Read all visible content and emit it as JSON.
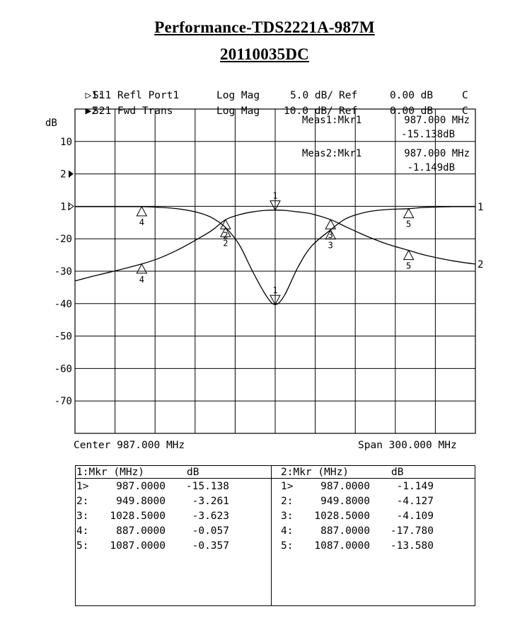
{
  "header": {
    "title": "Performance-TDS2221A-987M",
    "subtitle": "20110035DC"
  },
  "channels": [
    {
      "prefix": "▷1:",
      "label": "S11 Refl Port1",
      "format": "Log Mag",
      "scale": "5.0 dB/",
      "ref_label": "Ref",
      "ref": "0.00 dB",
      "flag": "C"
    },
    {
      "prefix": "▶2:",
      "label": "S21 Fwd Trans",
      "format": "Log Mag",
      "scale": "10.0 dB/",
      "ref_label": "Ref",
      "ref": "0.00 dB",
      "flag": "C"
    }
  ],
  "measurements": [
    {
      "label": "Meas1:Mkr1",
      "freq": "987.000 MHz",
      "value": "-15.138dB"
    },
    {
      "label": "Meas2:Mkr1",
      "freq": "987.000 MHz",
      "value": "-1.149dB"
    }
  ],
  "footer": {
    "center": "Center 987.000 MHz",
    "span": "Span 300.000 MHz"
  },
  "chart_data": {
    "type": "line",
    "ylabel": "dB",
    "y_ticks": [
      "10",
      "2:",
      "1:",
      "-20",
      "-30",
      "-40",
      "-50",
      "-60",
      "-70"
    ],
    "x_center_mhz": 987.0,
    "x_span_mhz": 300.0,
    "xlim": [
      837,
      1137
    ],
    "grid": true,
    "series": [
      {
        "name": "1",
        "scale_db_per_div": 5.0,
        "ref_db": 0.0,
        "x": [
          837,
          850,
          870,
          887,
          900,
          915,
          930,
          940,
          949.8,
          960,
          970,
          980,
          987,
          994,
          1004,
          1014,
          1028.5,
          1040,
          1055,
          1070,
          1087,
          1100,
          1120,
          1137
        ],
        "y": [
          -0.05,
          -0.05,
          -0.05,
          -0.057,
          -0.15,
          -0.4,
          -1.0,
          -1.8,
          -3.261,
          -5.9,
          -10.0,
          -13.7,
          -15.138,
          -13.7,
          -9.4,
          -6.2,
          -3.623,
          -1.9,
          -0.9,
          -0.5,
          -0.357,
          -0.15,
          -0.05,
          -0.05
        ]
      },
      {
        "name": "2",
        "scale_db_per_div": 10.0,
        "ref_db": 0.0,
        "x": [
          837,
          850,
          870,
          887,
          900,
          915,
          930,
          940,
          949.8,
          960,
          970,
          980,
          987,
          994,
          1004,
          1014,
          1028.5,
          1040,
          1055,
          1070,
          1087,
          1100,
          1120,
          1137
        ],
        "y": [
          -23.0,
          -21.6,
          -19.6,
          -17.78,
          -16.0,
          -13.2,
          -9.8,
          -7.3,
          -4.127,
          -2.6,
          -1.7,
          -1.25,
          -1.149,
          -1.25,
          -1.7,
          -2.3,
          -4.109,
          -6.3,
          -9.1,
          -11.5,
          -13.58,
          -15.1,
          -16.8,
          -17.8
        ]
      }
    ]
  },
  "markers": {
    "header_left": "1:Mkr (MHz)",
    "header_left_unit": "dB",
    "header_right": "2:Mkr (MHz)",
    "header_right_unit": "dB",
    "left": [
      {
        "id": "1>",
        "freq": "987.0000",
        "value": "-15.138"
      },
      {
        "id": "2:",
        "freq": "949.8000",
        "value": "-3.261"
      },
      {
        "id": "3:",
        "freq": "1028.5000",
        "value": "-3.623"
      },
      {
        "id": "4:",
        "freq": "887.0000",
        "value": "-0.057"
      },
      {
        "id": "5:",
        "freq": "1087.0000",
        "value": "-0.357"
      }
    ],
    "right": [
      {
        "id": "1>",
        "freq": "987.0000",
        "value": "-1.149"
      },
      {
        "id": "2:",
        "freq": "949.8000",
        "value": "-4.127"
      },
      {
        "id": "3:",
        "freq": "1028.5000",
        "value": "-4.109"
      },
      {
        "id": "4:",
        "freq": "887.0000",
        "value": "-17.780"
      },
      {
        "id": "5:",
        "freq": "1087.0000",
        "value": "-13.580"
      }
    ]
  }
}
